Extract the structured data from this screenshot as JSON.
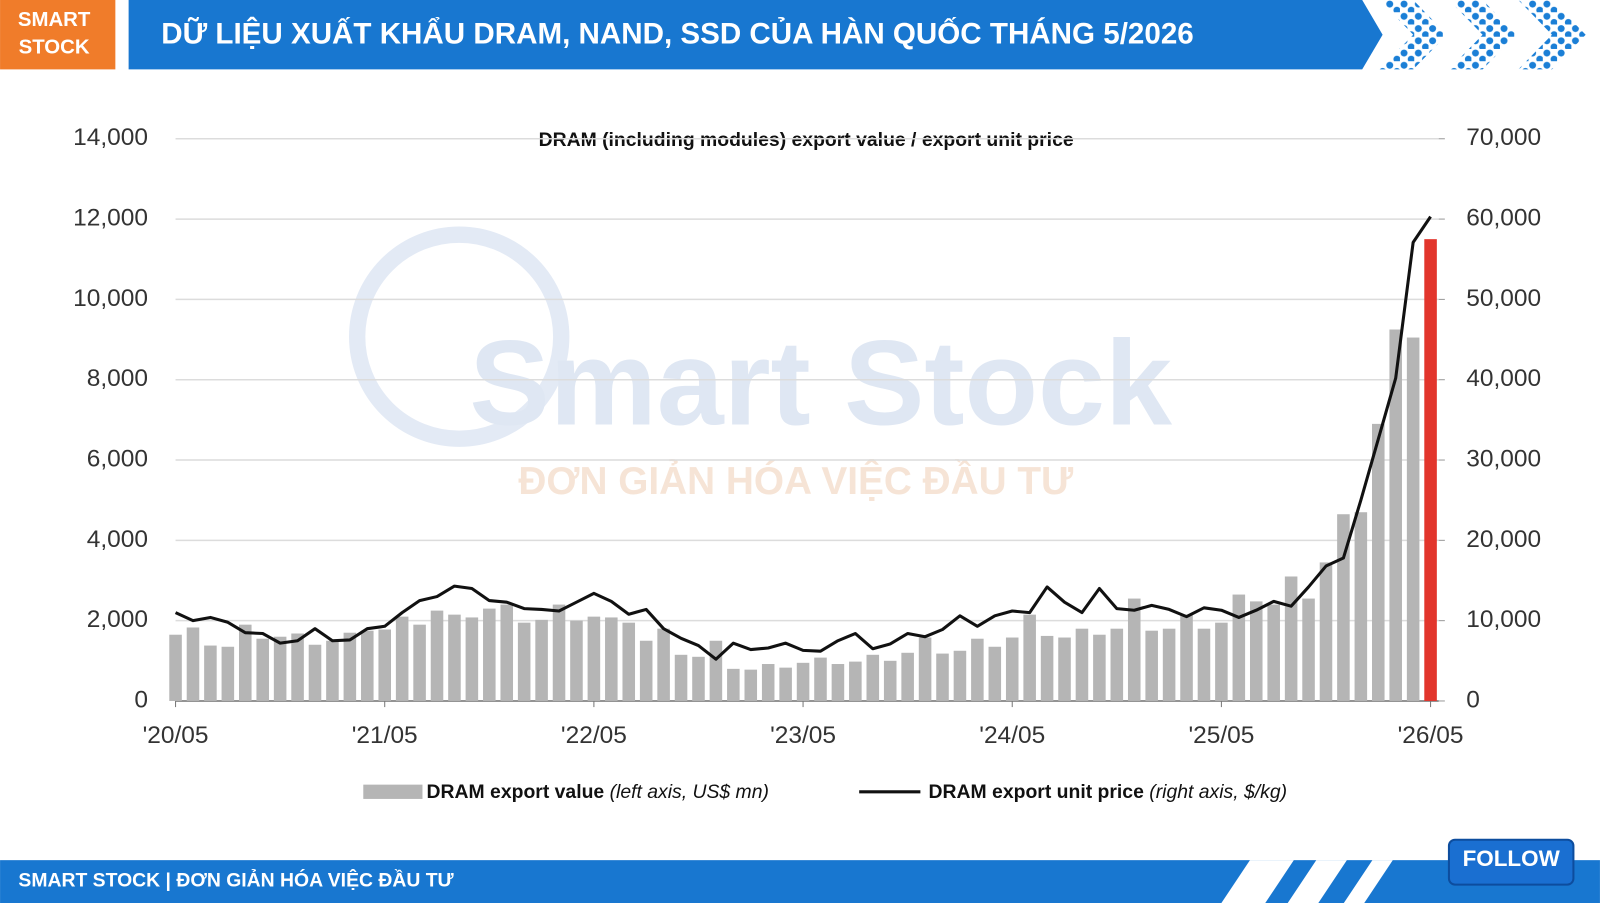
{
  "header": {
    "logo": [
      "SMART",
      "STOCK"
    ],
    "title": "DỮ LIỆU XUẤT KHẨU DRAM, NAND, SSD CỦA HÀN QUỐC THÁNG 5/2026"
  },
  "watermark": {
    "brand": "Smart Stock",
    "slogan": "ĐƠN GIẢN HÓA VIỆC ĐẦU TƯ"
  },
  "chart_data": {
    "type": "bar_line",
    "title": "DRAM (including modules) export value / export unit price",
    "categories": [
      "'20/05",
      null,
      null,
      null,
      null,
      null,
      null,
      null,
      null,
      null,
      null,
      null,
      "'21/05",
      null,
      null,
      null,
      null,
      null,
      null,
      null,
      null,
      null,
      null,
      null,
      "'22/05",
      null,
      null,
      null,
      null,
      null,
      null,
      null,
      null,
      null,
      null,
      null,
      "'23/05",
      null,
      null,
      null,
      null,
      null,
      null,
      null,
      null,
      null,
      null,
      null,
      "'24/05",
      null,
      null,
      null,
      null,
      null,
      null,
      null,
      null,
      null,
      null,
      null,
      "'25/05",
      null,
      null,
      null,
      null,
      null,
      null,
      null,
      null,
      null,
      null,
      null,
      "'26/05"
    ],
    "series": [
      {
        "name": "DRAM export value",
        "note": "(left axis, US$ mn)",
        "type": "bar",
        "axis": "y",
        "color": "#b5b5b5",
        "highlight_color": "#e2352c",
        "values": [
          1650,
          1830,
          1380,
          1350,
          1900,
          1550,
          1600,
          1680,
          1400,
          1500,
          1700,
          1750,
          1780,
          2100,
          1900,
          2250,
          2150,
          2080,
          2300,
          2400,
          1950,
          2020,
          2400,
          2000,
          2100,
          2080,
          1950,
          1500,
          1800,
          1150,
          1100,
          1500,
          800,
          780,
          920,
          830,
          950,
          1080,
          920,
          980,
          1150,
          1000,
          1200,
          1580,
          1180,
          1250,
          1550,
          1350,
          1580,
          2150,
          1620,
          1580,
          1800,
          1650,
          1800,
          2550,
          1750,
          1800,
          2150,
          1800,
          1950,
          2650,
          2480,
          2400,
          3100,
          2550,
          3450,
          4650,
          4700,
          6900,
          9250,
          9050,
          11500
        ]
      },
      {
        "name": "DRAM export unit price",
        "note": "(right axis, $/kg)",
        "type": "line",
        "axis": "y2",
        "color": "#111111",
        "values": [
          11000,
          10000,
          10400,
          9800,
          8500,
          8400,
          7200,
          7500,
          9000,
          7500,
          7600,
          9000,
          9300,
          11000,
          12500,
          13000,
          14300,
          14000,
          12500,
          12300,
          11500,
          11400,
          11200,
          12300,
          13400,
          12400,
          10800,
          11400,
          9000,
          7800,
          6900,
          5200,
          7200,
          6400,
          6600,
          7200,
          6300,
          6200,
          7500,
          8400,
          6500,
          7100,
          8400,
          8000,
          8900,
          10600,
          9300,
          10600,
          11200,
          11000,
          14200,
          12300,
          11000,
          14000,
          11500,
          11300,
          11900,
          11400,
          10500,
          11600,
          11300,
          10400,
          11300,
          12400,
          11800,
          14200,
          16800,
          17800,
          25000,
          32600,
          40200,
          57100,
          60300
        ]
      }
    ],
    "ylim": [
      0,
      14000
    ],
    "yticks": [
      0,
      {
        "value": 2000,
        "label": "2,000"
      },
      {
        "value": 4000,
        "label": "4,000"
      },
      {
        "value": 6000,
        "label": "6,000"
      },
      {
        "value": 8000,
        "label": "8,000"
      },
      {
        "value": 10000,
        "label": "10,000"
      },
      {
        "value": 12000,
        "label": "12,000"
      },
      {
        "value": 14000,
        "label": "14,000"
      }
    ],
    "y2lim": [
      0,
      70000
    ],
    "y2ticks": [
      0,
      {
        "value": 10000,
        "label": "10,000"
      },
      {
        "value": 20000,
        "label": "20,000"
      },
      {
        "value": 30000,
        "label": "30,000"
      },
      {
        "value": 40000,
        "label": "40,000"
      },
      {
        "value": 50000,
        "label": "50,000"
      },
      {
        "value": 60000,
        "label": "60,000"
      },
      {
        "value": 70000,
        "label": "70,000"
      }
    ],
    "grid": true,
    "legend": "bottom"
  },
  "footer": {
    "text": "SMART STOCK | ĐƠN GIẢN HÓA VIỆC ĐẦU TƯ",
    "button": "FOLLOW"
  }
}
